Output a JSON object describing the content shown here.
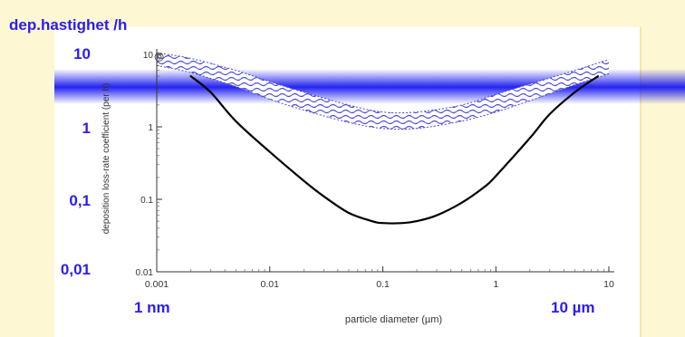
{
  "overlay": {
    "title": "dep.hastighet /h",
    "y_labels": [
      "10",
      "1",
      "0,1",
      "0,01"
    ],
    "x_left": "1 nm",
    "x_right": "10 µm"
  },
  "colors": {
    "background": "#fdf7d3",
    "accent_blue": "#2a1df0",
    "band_blue": "#4a4ad8",
    "glow_blue": "#1818f0",
    "curve": "#000000"
  },
  "chart_data": {
    "type": "line",
    "xlabel": "particle diameter (µm)",
    "ylabel": "deposition loss-rate coefficient (per h)",
    "xscale": "log",
    "yscale": "log",
    "xlim": [
      0.001,
      10
    ],
    "ylim": [
      0.01,
      10
    ],
    "x_ticks": [
      {
        "value": 0.001,
        "label": "0.001"
      },
      {
        "value": 0.01,
        "label": "0.01"
      },
      {
        "value": 0.1,
        "label": "0.1"
      },
      {
        "value": 1,
        "label": "1"
      },
      {
        "value": 10,
        "label": "10"
      }
    ],
    "y_ticks": [
      {
        "value": 0.01,
        "label": "0.01"
      },
      {
        "value": 0.1,
        "label": "0.1"
      },
      {
        "value": 1,
        "label": "1"
      },
      {
        "value": 10,
        "label": "10"
      }
    ],
    "curve": {
      "x": [
        0.002,
        0.003,
        0.005,
        0.01,
        0.02,
        0.03,
        0.05,
        0.08,
        0.1,
        0.15,
        0.2,
        0.3,
        0.5,
        0.8,
        1,
        2,
        3,
        5,
        8
      ],
      "y": [
        5,
        3,
        1.2,
        0.45,
        0.18,
        0.11,
        0.065,
        0.05,
        0.047,
        0.047,
        0.05,
        0.06,
        0.09,
        0.15,
        0.21,
        0.7,
        1.5,
        3,
        5
      ]
    },
    "band": {
      "x": [
        0.001,
        0.002,
        0.005,
        0.01,
        0.02,
        0.05,
        0.1,
        0.2,
        0.5,
        1,
        2,
        5,
        10
      ],
      "upper": [
        10.5,
        8.8,
        6,
        4.2,
        3,
        2,
        1.6,
        1.6,
        2,
        2.8,
        3.9,
        6,
        8.5
      ],
      "lower": [
        7,
        5.6,
        3.6,
        2.4,
        1.7,
        1.15,
        0.95,
        0.95,
        1.2,
        1.6,
        2.3,
        3.8,
        5.4
      ]
    }
  }
}
